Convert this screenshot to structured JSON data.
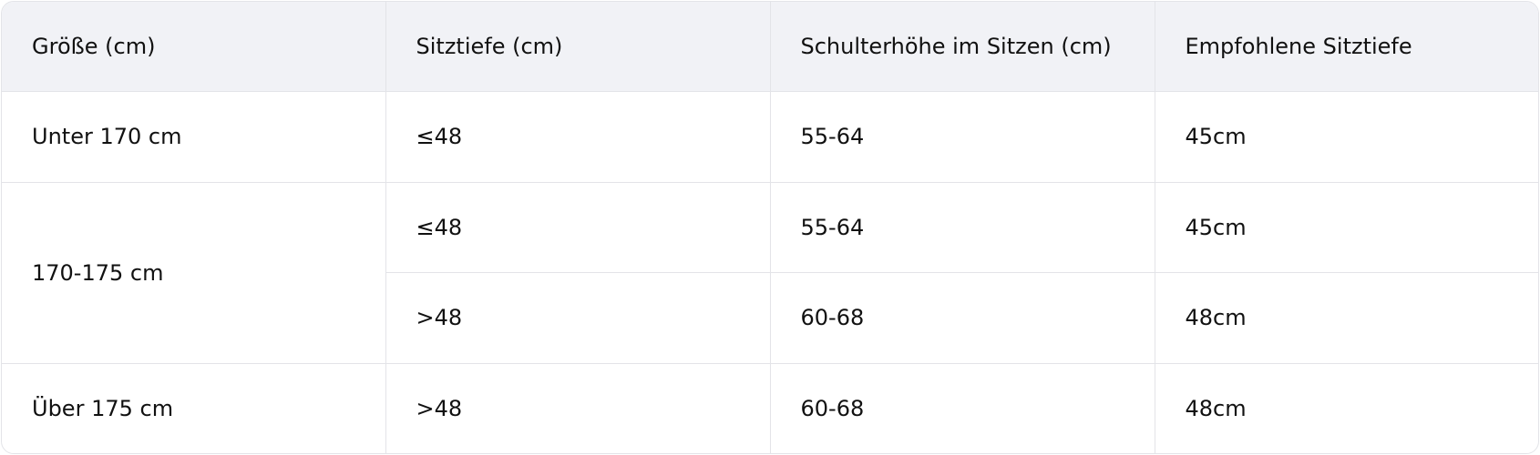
{
  "table": {
    "headers": [
      "Größe (cm)",
      "Sitztiefe (cm)",
      "Schulterhöhe im Sitzen (cm)",
      "Empfohlene Sitztiefe"
    ],
    "rows": [
      [
        "Unter 170 cm",
        "≤48",
        "55-64",
        "45cm"
      ],
      [
        "170-175 cm",
        "≤48",
        "55-64",
        "45cm"
      ],
      [
        "",
        ">48",
        "60-68",
        "48cm"
      ],
      [
        "Über 175 cm",
        ">48",
        "60-68",
        "48cm"
      ]
    ]
  }
}
